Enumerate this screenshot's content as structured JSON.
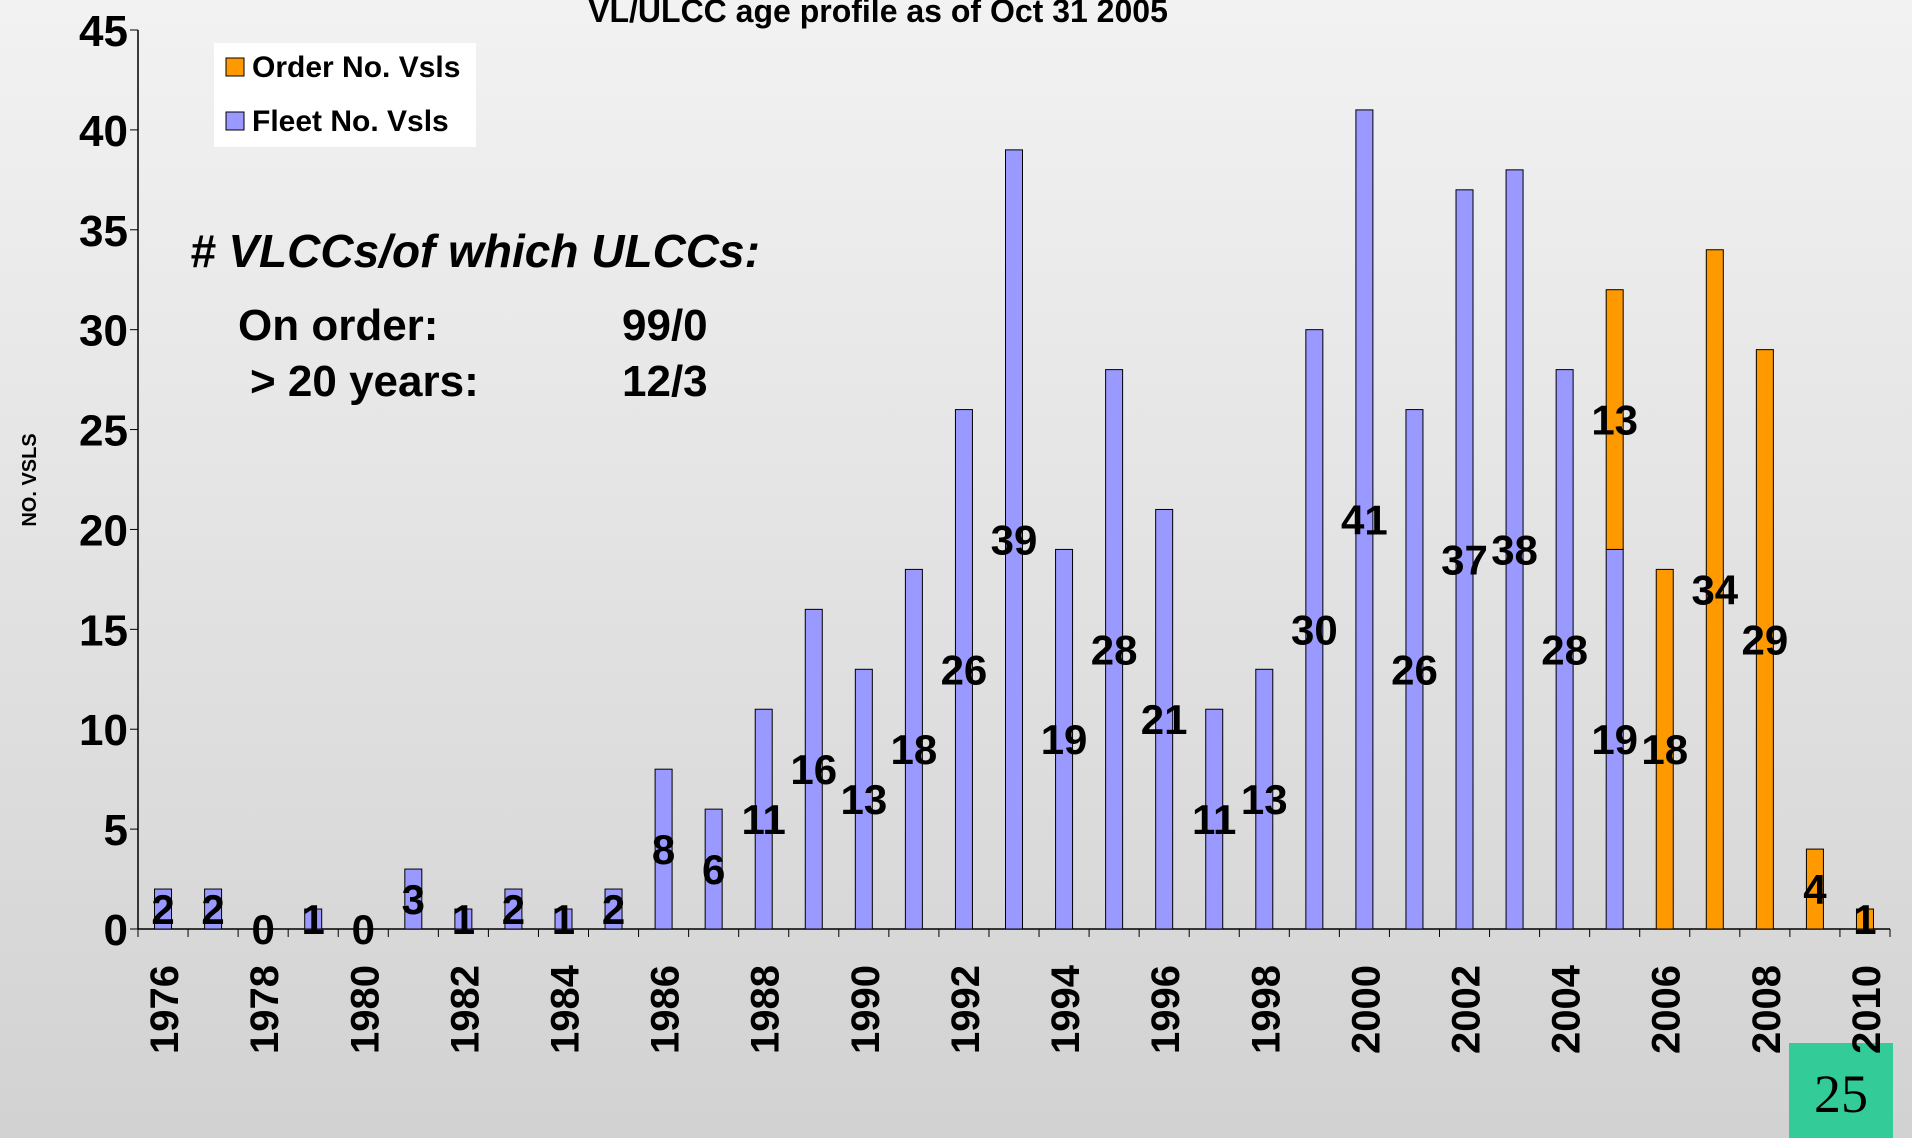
{
  "chart_data": {
    "type": "bar",
    "stacked": true,
    "title": "VL/ULCC age profile as of Oct 31 2005",
    "y_label": "NO. VSLS",
    "categories": [
      "1976",
      null,
      "1978",
      null,
      "1980",
      null,
      "1982",
      null,
      "1984",
      null,
      "1986",
      null,
      "1988",
      null,
      "1990",
      null,
      "1992",
      null,
      "1994",
      null,
      "1996",
      null,
      "1998",
      null,
      "2000",
      null,
      "2002",
      null,
      "2004",
      null,
      "2006",
      null,
      "2008",
      null,
      "2010"
    ],
    "series": [
      {
        "name": "Fleet No. Vsls",
        "color": "#9999ff",
        "values": [
          2,
          2,
          0,
          1,
          0,
          3,
          1,
          2,
          1,
          2,
          8,
          6,
          11,
          16,
          13,
          18,
          26,
          39,
          19,
          28,
          21,
          11,
          13,
          30,
          41,
          26,
          37,
          38,
          28,
          19,
          null,
          null,
          null,
          null,
          null
        ]
      },
      {
        "name": "Order No. Vsls",
        "color": "#ff9900",
        "values": [
          null,
          null,
          null,
          null,
          null,
          null,
          null,
          null,
          null,
          null,
          null,
          null,
          null,
          null,
          null,
          null,
          null,
          null,
          null,
          null,
          null,
          null,
          null,
          null,
          null,
          null,
          null,
          null,
          null,
          13,
          18,
          34,
          29,
          4,
          1
        ]
      }
    ],
    "ylim": [
      0,
      45
    ],
    "yticks": [
      0,
      5,
      10,
      15,
      20,
      25,
      30,
      35,
      40,
      45
    ],
    "grid": false,
    "legend": "upper left",
    "annotations": [
      "# VLCCs/of which ULCCs:",
      "On order:",
      "99/0",
      "> 20 years:",
      "12/3"
    ]
  },
  "page_number": "25"
}
